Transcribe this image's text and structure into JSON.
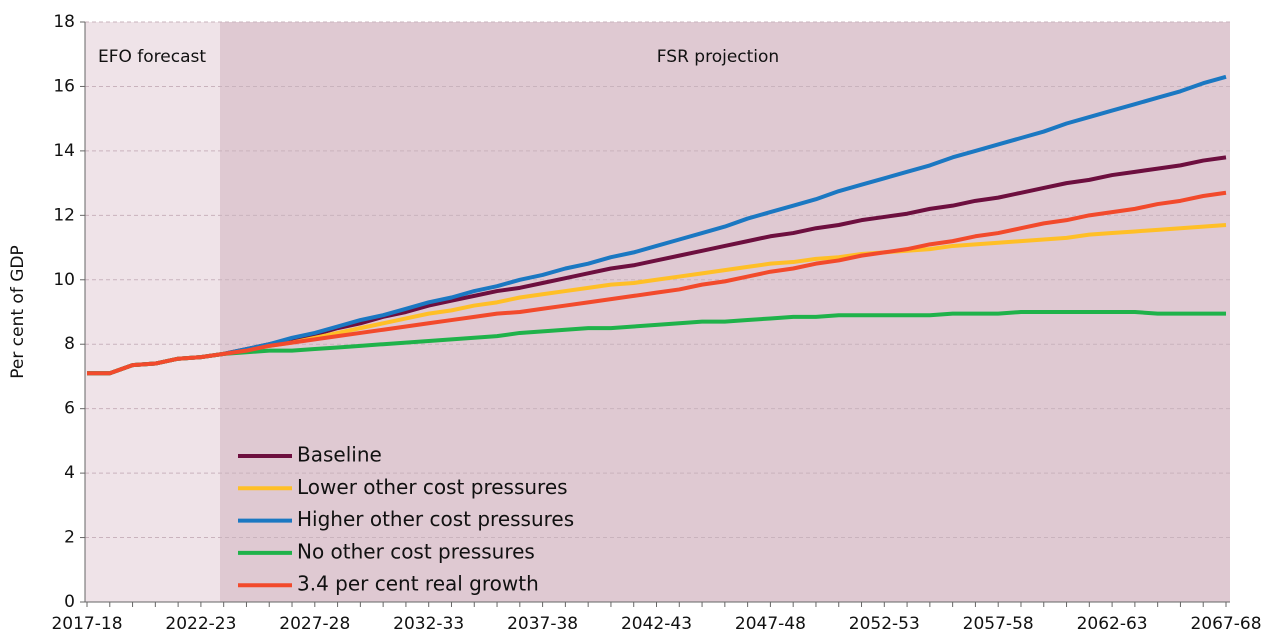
{
  "chart_data": {
    "type": "line",
    "ylabel": "Per cent of GDP",
    "annotations": [
      "EFO forecast",
      "FSR projection"
    ],
    "categories": [
      "2017-18",
      null,
      null,
      null,
      null,
      "2022-23",
      null,
      null,
      null,
      null,
      "2027-28",
      null,
      null,
      null,
      null,
      "2032-33",
      null,
      null,
      null,
      null,
      "2037-38",
      null,
      null,
      null,
      null,
      "2042-43",
      null,
      null,
      null,
      null,
      "2047-48",
      null,
      null,
      null,
      null,
      "2052-53",
      null,
      null,
      null,
      null,
      "2057-58",
      null,
      null,
      null,
      null,
      "2062-63",
      null,
      null,
      null,
      null,
      "2067-68"
    ],
    "series": [
      {
        "name": "Baseline",
        "color": "#6d0f3f",
        "values": [
          7.1,
          7.1,
          7.35,
          7.4,
          7.55,
          7.6,
          7.7,
          7.85,
          8.0,
          8.15,
          8.3,
          8.5,
          8.65,
          8.85,
          9.0,
          9.2,
          9.35,
          9.5,
          9.65,
          9.75,
          9.9,
          10.05,
          10.2,
          10.35,
          10.45,
          10.6,
          10.75,
          10.9,
          11.05,
          11.2,
          11.35,
          11.45,
          11.6,
          11.7,
          11.85,
          11.95,
          12.05,
          12.2,
          12.3,
          12.45,
          12.55,
          12.7,
          12.85,
          13.0,
          13.1,
          13.25,
          13.35,
          13.45,
          13.55,
          13.7,
          13.8
        ]
      },
      {
        "name": "Lower other cost pressures",
        "color": "#ffbf27",
        "values": [
          7.1,
          7.1,
          7.35,
          7.4,
          7.55,
          7.6,
          7.7,
          7.8,
          7.95,
          8.05,
          8.2,
          8.35,
          8.5,
          8.65,
          8.8,
          8.95,
          9.05,
          9.2,
          9.3,
          9.45,
          9.55,
          9.65,
          9.75,
          9.85,
          9.9,
          10.0,
          10.1,
          10.2,
          10.3,
          10.4,
          10.5,
          10.55,
          10.65,
          10.7,
          10.8,
          10.85,
          10.9,
          10.95,
          11.05,
          11.1,
          11.15,
          11.2,
          11.25,
          11.3,
          11.4,
          11.45,
          11.5,
          11.55,
          11.6,
          11.65,
          11.7
        ]
      },
      {
        "name": "Higher other cost pressures",
        "color": "#1b78c2",
        "values": [
          7.1,
          7.1,
          7.35,
          7.4,
          7.55,
          7.6,
          7.7,
          7.85,
          8.0,
          8.2,
          8.35,
          8.55,
          8.75,
          8.9,
          9.1,
          9.3,
          9.45,
          9.65,
          9.8,
          10.0,
          10.15,
          10.35,
          10.5,
          10.7,
          10.85,
          11.05,
          11.25,
          11.45,
          11.65,
          11.9,
          12.1,
          12.3,
          12.5,
          12.75,
          12.95,
          13.15,
          13.35,
          13.55,
          13.8,
          14.0,
          14.2,
          14.4,
          14.6,
          14.85,
          15.05,
          15.25,
          15.45,
          15.65,
          15.85,
          16.1,
          16.3
        ]
      },
      {
        "name": "No other cost pressures",
        "color": "#1fb24a",
        "values": [
          7.1,
          7.1,
          7.35,
          7.4,
          7.55,
          7.6,
          7.7,
          7.75,
          7.8,
          7.8,
          7.85,
          7.9,
          7.95,
          8.0,
          8.05,
          8.1,
          8.15,
          8.2,
          8.25,
          8.35,
          8.4,
          8.45,
          8.5,
          8.5,
          8.55,
          8.6,
          8.65,
          8.7,
          8.7,
          8.75,
          8.8,
          8.85,
          8.85,
          8.9,
          8.9,
          8.9,
          8.9,
          8.9,
          8.95,
          8.95,
          8.95,
          9.0,
          9.0,
          9.0,
          9.0,
          9.0,
          9.0,
          8.95,
          8.95,
          8.95,
          8.95
        ]
      },
      {
        "name": "3.4 per cent real growth",
        "color": "#f24a2c",
        "values": [
          7.1,
          7.1,
          7.35,
          7.4,
          7.55,
          7.6,
          7.7,
          7.8,
          7.95,
          8.05,
          8.15,
          8.25,
          8.35,
          8.45,
          8.55,
          8.65,
          8.75,
          8.85,
          8.95,
          9.0,
          9.1,
          9.2,
          9.3,
          9.4,
          9.5,
          9.6,
          9.7,
          9.85,
          9.95,
          10.1,
          10.25,
          10.35,
          10.5,
          10.6,
          10.75,
          10.85,
          10.95,
          11.1,
          11.2,
          11.35,
          11.45,
          11.6,
          11.75,
          11.85,
          12.0,
          12.1,
          12.2,
          12.35,
          12.45,
          12.6,
          12.7
        ]
      }
    ],
    "ylim": [
      0,
      18
    ],
    "yticks": [
      0,
      2,
      4,
      6,
      8,
      10,
      12,
      14,
      16,
      18
    ],
    "grid": true,
    "legend": "lower left"
  }
}
